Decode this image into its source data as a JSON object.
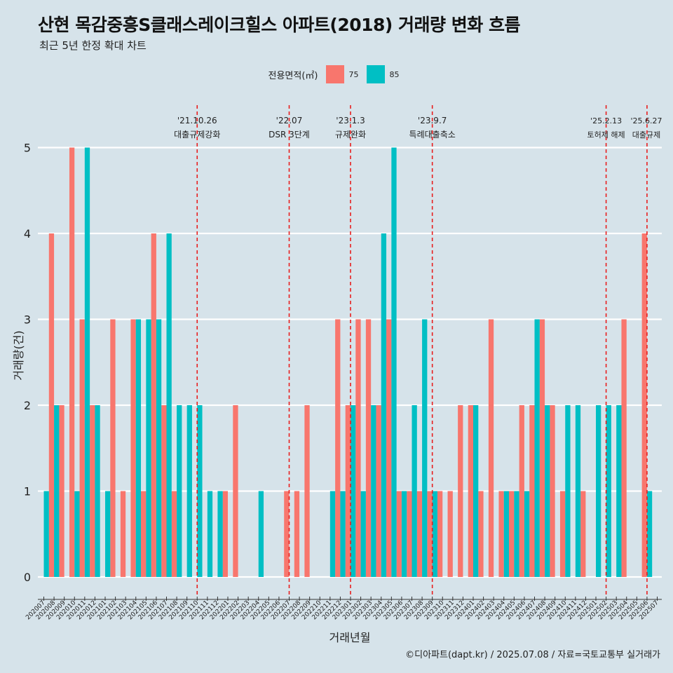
{
  "title": "산현 목감중흥S클래스레이크힐스 아파트(2018) 거래량 변화 흐름",
  "subtitle": "최근 5년 한정 확대 차트",
  "caption": "©디아파트(dapt.kr) / 2025.07.08 / 자료=국토교통부 실거래가",
  "legend": {
    "title": "전용면적(㎡)",
    "items": [
      {
        "label": "75",
        "color": "#f8766d"
      },
      {
        "label": "85",
        "color": "#00bfc4"
      }
    ]
  },
  "chart_data": {
    "type": "bar",
    "title": "산현 목감중흥S클래스레이크힐스 아파트(2018) 거래량 변화 흐름",
    "xlabel": "거래년월",
    "ylabel": "거래량(건)",
    "ylim": [
      0,
      5
    ],
    "yticks": [
      0,
      1,
      2,
      3,
      4,
      5
    ],
    "categories": [
      "202007",
      "202008",
      "202009",
      "202010",
      "202011",
      "202012",
      "202101",
      "202102",
      "202103",
      "202104",
      "202105",
      "202106",
      "202107",
      "202108",
      "202109",
      "202110",
      "202111",
      "202112",
      "202201",
      "202202",
      "202203",
      "202204",
      "202205",
      "202206",
      "202207",
      "202208",
      "202209",
      "202210",
      "202211",
      "202212",
      "202301",
      "202302",
      "202303",
      "202304",
      "202305",
      "202306",
      "202307",
      "202308",
      "202309",
      "202310",
      "202311",
      "202312",
      "202401",
      "202402",
      "202403",
      "202404",
      "202405",
      "202406",
      "202407",
      "202408",
      "202409",
      "202410",
      "202411",
      "202412",
      "202501",
      "202502",
      "202503",
      "202504",
      "202505",
      "202506",
      "202507"
    ],
    "series": [
      {
        "name": "75",
        "color": "#f8766d",
        "values": [
          0,
          4,
          2,
          5,
          3,
          2,
          0,
          3,
          1,
          3,
          1,
          4,
          2,
          1,
          0,
          0,
          0,
          0,
          1,
          2,
          0,
          0,
          0,
          0,
          1,
          1,
          2,
          0,
          0,
          3,
          2,
          3,
          3,
          2,
          3,
          1,
          1,
          1,
          1,
          1,
          1,
          2,
          2,
          1,
          3,
          1,
          1,
          2,
          2,
          3,
          2,
          1,
          0,
          1,
          0,
          0,
          0,
          3,
          0,
          4,
          0
        ]
      },
      {
        "name": "85",
        "color": "#00bfc4",
        "values": [
          1,
          2,
          0,
          1,
          5,
          2,
          1,
          0,
          0,
          3,
          3,
          3,
          4,
          2,
          2,
          2,
          1,
          1,
          0,
          0,
          0,
          1,
          0,
          0,
          0,
          0,
          0,
          0,
          1,
          1,
          2,
          1,
          2,
          4,
          5,
          1,
          2,
          3,
          1,
          0,
          0,
          0,
          2,
          0,
          0,
          1,
          1,
          1,
          3,
          2,
          0,
          2,
          2,
          0,
          2,
          2,
          2,
          0,
          0,
          1,
          0
        ]
      }
    ],
    "events": [
      {
        "date": "'21.10.26",
        "label": "대출규제강화",
        "month": "202110"
      },
      {
        "date": "'22.07",
        "label": "DSR 3단계",
        "month": "202207"
      },
      {
        "date": "'23.1.3",
        "label": "규제완화",
        "month": "202301"
      },
      {
        "date": "'23.9.7",
        "label": "특례대출축소",
        "month": "202309"
      },
      {
        "date": "'25.2.13",
        "label": "토허제 해제",
        "month": "202502"
      },
      {
        "date": "'25.6.27",
        "label": "대출규제",
        "month": "202506"
      }
    ]
  }
}
